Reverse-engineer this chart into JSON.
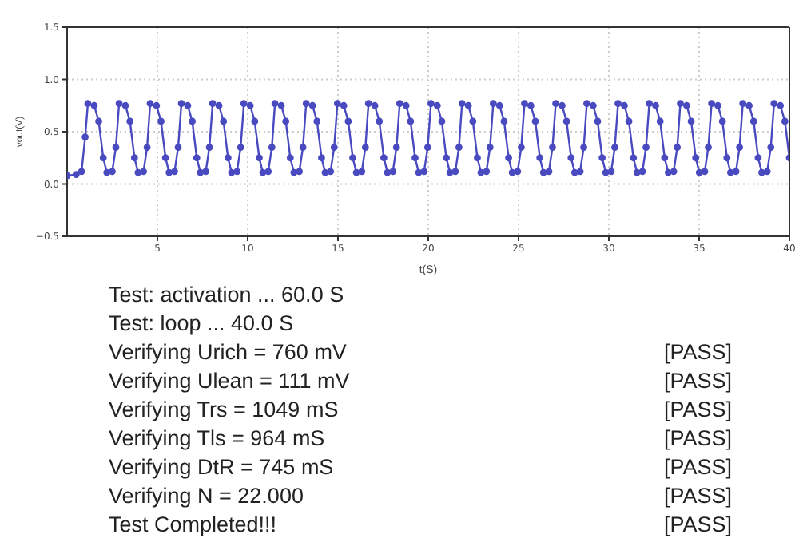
{
  "chart_data": {
    "type": "line",
    "xlabel": "t(S)",
    "ylabel": "vout(V)",
    "xlim": [
      0,
      40
    ],
    "xticks": [
      5,
      10,
      15,
      20,
      25,
      30,
      35,
      40
    ],
    "ylim": [
      -0.5,
      1.5
    ],
    "yticks": [
      {
        "value": -0.5,
        "label": "−0.5"
      },
      {
        "value": 0,
        "label": "0.0"
      },
      0.5,
      {
        "value": 1,
        "label": "1.0"
      },
      1.5
    ],
    "grid": true,
    "marker": "circle",
    "line_style": "solid",
    "x": [
      0,
      0.5,
      0.8,
      1.0,
      1.15,
      1.5,
      1.75,
      2.0,
      2.2,
      2.5,
      2.7,
      2.88,
      3.23,
      3.48,
      3.73,
      3.93,
      4.23,
      4.43,
      4.6,
      4.95,
      5.2,
      5.45,
      5.65,
      5.95,
      6.15,
      6.33,
      6.68,
      6.93,
      7.18,
      7.38,
      7.68,
      7.88,
      8.06,
      8.41,
      8.66,
      8.91,
      9.11,
      9.41,
      9.61,
      9.79,
      10.14,
      10.39,
      10.64,
      10.84,
      11.14,
      11.34,
      11.51,
      11.86,
      12.11,
      12.36,
      12.56,
      12.86,
      13.06,
      13.24,
      13.59,
      13.84,
      14.09,
      14.29,
      14.59,
      14.79,
      14.97,
      15.32,
      15.57,
      15.82,
      16.02,
      16.32,
      16.52,
      16.69,
      17.04,
      17.29,
      17.54,
      17.74,
      18.04,
      18.24,
      18.42,
      18.77,
      19.02,
      19.27,
      19.47,
      19.77,
      19.97,
      20.15,
      20.5,
      20.75,
      21.0,
      21.2,
      21.5,
      21.7,
      21.87,
      22.22,
      22.47,
      22.72,
      22.92,
      23.22,
      23.42,
      23.6,
      23.95,
      24.2,
      24.45,
      24.65,
      24.95,
      25.15,
      25.33,
      25.68,
      25.93,
      26.18,
      26.38,
      26.68,
      26.88,
      27.06,
      27.41,
      27.66,
      27.91,
      28.11,
      28.41,
      28.61,
      28.78,
      29.13,
      29.38,
      29.63,
      29.83,
      30.13,
      30.33,
      30.51,
      30.86,
      31.11,
      31.36,
      31.56,
      31.86,
      32.06,
      32.24,
      32.59,
      32.84,
      33.09,
      33.29,
      33.59,
      33.79,
      33.96,
      34.31,
      34.56,
      34.81,
      35.01,
      35.31,
      35.51,
      35.69,
      36.04,
      36.29,
      36.54,
      36.74,
      37.04,
      37.24,
      37.42,
      37.77,
      38.02,
      38.27,
      38.47,
      38.77,
      38.97,
      39.15,
      39.5,
      39.75,
      40.0
    ],
    "series": [
      {
        "color": "#4a4ac0",
        "values": [
          0.08,
          0.09,
          0.12,
          0.45,
          0.77,
          0.75,
          0.6,
          0.25,
          0.11,
          0.12,
          0.35,
          0.77,
          0.75,
          0.6,
          0.25,
          0.11,
          0.12,
          0.35,
          0.77,
          0.75,
          0.6,
          0.25,
          0.11,
          0.12,
          0.35,
          0.77,
          0.75,
          0.6,
          0.25,
          0.11,
          0.12,
          0.35,
          0.77,
          0.75,
          0.6,
          0.25,
          0.11,
          0.12,
          0.35,
          0.77,
          0.75,
          0.6,
          0.25,
          0.11,
          0.12,
          0.35,
          0.77,
          0.75,
          0.6,
          0.25,
          0.11,
          0.12,
          0.35,
          0.77,
          0.75,
          0.6,
          0.25,
          0.11,
          0.12,
          0.35,
          0.77,
          0.75,
          0.6,
          0.25,
          0.11,
          0.12,
          0.35,
          0.77,
          0.75,
          0.6,
          0.25,
          0.11,
          0.12,
          0.35,
          0.77,
          0.75,
          0.6,
          0.25,
          0.11,
          0.12,
          0.35,
          0.77,
          0.75,
          0.6,
          0.25,
          0.11,
          0.12,
          0.35,
          0.77,
          0.75,
          0.6,
          0.25,
          0.11,
          0.12,
          0.35,
          0.77,
          0.75,
          0.6,
          0.25,
          0.11,
          0.12,
          0.35,
          0.77,
          0.75,
          0.6,
          0.25,
          0.11,
          0.12,
          0.35,
          0.77,
          0.75,
          0.6,
          0.25,
          0.11,
          0.12,
          0.35,
          0.77,
          0.75,
          0.6,
          0.25,
          0.11,
          0.12,
          0.35,
          0.77,
          0.75,
          0.6,
          0.25,
          0.11,
          0.12,
          0.35,
          0.77,
          0.75,
          0.6,
          0.25,
          0.11,
          0.12,
          0.35,
          0.77,
          0.75,
          0.6,
          0.25,
          0.11,
          0.12,
          0.35,
          0.77,
          0.75,
          0.6,
          0.25,
          0.11,
          0.12,
          0.35,
          0.77,
          0.75,
          0.6,
          0.25,
          0.11,
          0.12,
          0.35,
          0.77,
          0.75,
          0.6,
          0.25
        ]
      }
    ],
    "annotations": [
      "Test: activation ... 60.0 S",
      "Test: loop ... 40.0 S",
      "Verifying Urich = 760 mV",
      "[PASS]",
      "Verifying Ulean = 111 mV",
      "[PASS]",
      "Verifying Trs = 1049 mS",
      "[PASS]",
      "Verifying Tls = 964 mS",
      "[PASS]",
      "Verifying DtR = 745 mS",
      "[PASS]",
      "Verifying N = 22.000",
      "[PASS]",
      "Test Completed!!!",
      "[PASS]"
    ]
  }
}
